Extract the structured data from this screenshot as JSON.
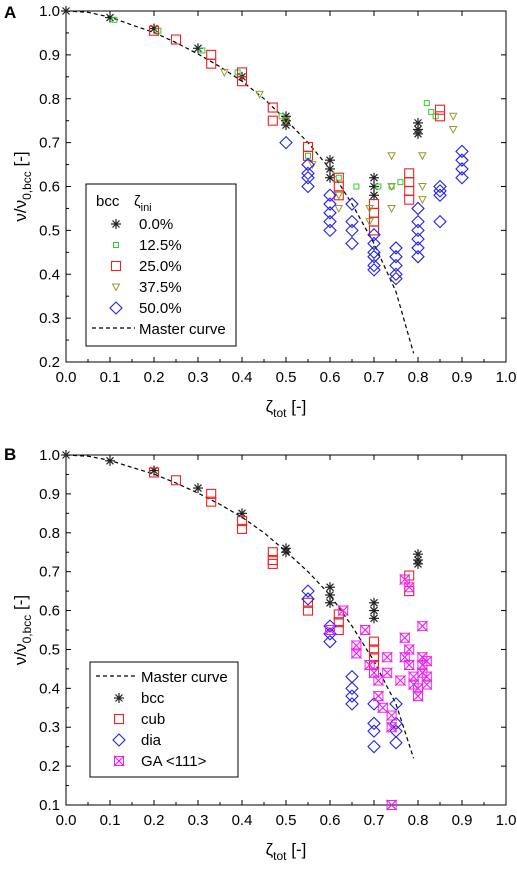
{
  "figure": {
    "panels": [
      "A",
      "B"
    ]
  },
  "colors": {
    "bcc": "#222222",
    "12.5%": "#33cc33",
    "25.0%": "#ee2222",
    "37.5%": "#999933",
    "50.0%": "#2222ee",
    "cub": "#ee2222",
    "dia": "#2222ee",
    "GA <111>": "#ee22ee",
    "master": "#000000"
  },
  "chart_data": [
    {
      "panel": "A",
      "type": "scatter",
      "xlabel": "ζtot [-]",
      "ylabel": "ν/ν0,bcc [-]",
      "xlim": [
        0.0,
        1.0
      ],
      "ylim": [
        0.2,
        1.0
      ],
      "xticks": [
        "0.0",
        "0.1",
        "0.2",
        "0.3",
        "0.4",
        "0.5",
        "0.6",
        "0.7",
        "0.8",
        "0.9",
        "1.0"
      ],
      "yticks": [
        "0.2",
        "0.3",
        "0.4",
        "0.5",
        "0.6",
        "0.7",
        "0.8",
        "0.9",
        "1.0"
      ],
      "legend": {
        "header_left": "bcc",
        "header_right": "ζini",
        "entries": [
          "0.0%",
          "12.5%",
          "25.0%",
          "37.5%",
          "50.0%",
          "Master curve"
        ]
      },
      "master_curve": {
        "name": "Master curve",
        "x": [
          0.0,
          0.05,
          0.1,
          0.15,
          0.2,
          0.25,
          0.3,
          0.35,
          0.4,
          0.45,
          0.5,
          0.55,
          0.6,
          0.65,
          0.7,
          0.75,
          0.79
        ],
        "y": [
          1.0,
          0.997,
          0.986,
          0.968,
          0.951,
          0.928,
          0.902,
          0.873,
          0.84,
          0.8,
          0.752,
          0.7,
          0.64,
          0.56,
          0.47,
          0.36,
          0.22
        ]
      },
      "series": [
        {
          "name": "0.0%",
          "marker": "asterisk",
          "x": [
            0.0,
            0.1,
            0.2,
            0.3,
            0.4,
            0.5,
            0.5,
            0.5,
            0.6,
            0.6,
            0.6,
            0.7,
            0.7,
            0.7,
            0.8,
            0.8,
            0.8
          ],
          "y": [
            1.0,
            0.985,
            0.96,
            0.915,
            0.85,
            0.76,
            0.75,
            0.74,
            0.66,
            0.64,
            0.62,
            0.62,
            0.6,
            0.58,
            0.745,
            0.73,
            0.72
          ]
        },
        {
          "name": "12.5%",
          "marker": "small-square",
          "x": [
            0.11,
            0.21,
            0.31,
            0.39,
            0.49,
            0.55,
            0.62,
            0.66,
            0.71,
            0.74,
            0.76,
            0.82,
            0.83,
            0.84
          ],
          "y": [
            0.98,
            0.955,
            0.91,
            0.86,
            0.76,
            0.67,
            0.62,
            0.6,
            0.6,
            0.6,
            0.61,
            0.79,
            0.77,
            0.76
          ],
          "visible_values": []
        },
        {
          "name": "25.0%",
          "marker": "square",
          "x": [
            0.2,
            0.25,
            0.33,
            0.33,
            0.4,
            0.4,
            0.47,
            0.47,
            0.55,
            0.55,
            0.62,
            0.62,
            0.62,
            0.7,
            0.7,
            0.7,
            0.7,
            0.78,
            0.78,
            0.78,
            0.78,
            0.85,
            0.85
          ],
          "y": [
            0.955,
            0.935,
            0.9,
            0.88,
            0.86,
            0.84,
            0.78,
            0.75,
            0.69,
            0.67,
            0.62,
            0.6,
            0.58,
            0.56,
            0.54,
            0.52,
            0.5,
            0.63,
            0.61,
            0.59,
            0.57,
            0.775,
            0.76
          ]
        },
        {
          "name": "37.5%",
          "marker": "triangle-down",
          "x": [
            0.36,
            0.44,
            0.5,
            0.56,
            0.62,
            0.62,
            0.69,
            0.69,
            0.74,
            0.74,
            0.74,
            0.81,
            0.81,
            0.81,
            0.88,
            0.88
          ],
          "y": [
            0.86,
            0.81,
            0.75,
            0.65,
            0.58,
            0.55,
            0.55,
            0.52,
            0.67,
            0.6,
            0.55,
            0.67,
            0.6,
            0.57,
            0.76,
            0.73
          ]
        },
        {
          "name": "50.0%",
          "marker": "diamond",
          "x": [
            0.5,
            0.55,
            0.55,
            0.55,
            0.55,
            0.6,
            0.6,
            0.6,
            0.6,
            0.6,
            0.65,
            0.65,
            0.65,
            0.65,
            0.7,
            0.7,
            0.7,
            0.7,
            0.7,
            0.7,
            0.75,
            0.75,
            0.75,
            0.75,
            0.75,
            0.8,
            0.8,
            0.8,
            0.8,
            0.8,
            0.8,
            0.85,
            0.85,
            0.85,
            0.85,
            0.9,
            0.9,
            0.9,
            0.9
          ],
          "y": [
            0.7,
            0.65,
            0.63,
            0.62,
            0.6,
            0.58,
            0.56,
            0.54,
            0.52,
            0.5,
            0.56,
            0.52,
            0.5,
            0.47,
            0.49,
            0.47,
            0.45,
            0.44,
            0.42,
            0.41,
            0.46,
            0.44,
            0.42,
            0.4,
            0.39,
            0.55,
            0.52,
            0.5,
            0.48,
            0.46,
            0.44,
            0.6,
            0.59,
            0.58,
            0.52,
            0.68,
            0.66,
            0.64,
            0.62
          ]
        }
      ]
    },
    {
      "panel": "B",
      "type": "scatter",
      "xlabel": "ζtot [-]",
      "ylabel": "ν/ν0,bcc [-]",
      "xlim": [
        0.0,
        1.0
      ],
      "ylim": [
        0.1,
        1.0
      ],
      "xticks": [
        "0.0",
        "0.1",
        "0.2",
        "0.3",
        "0.4",
        "0.5",
        "0.6",
        "0.7",
        "0.8",
        "0.9",
        "1.0"
      ],
      "yticks": [
        "0.1",
        "0.2",
        "0.3",
        "0.4",
        "0.5",
        "0.6",
        "0.7",
        "0.8",
        "0.9",
        "1.0"
      ],
      "legend": {
        "entries": [
          "Master curve",
          "bcc",
          "cub",
          "dia",
          "GA <111>"
        ]
      },
      "master_curve": {
        "name": "Master curve",
        "x": [
          0.0,
          0.05,
          0.1,
          0.15,
          0.2,
          0.25,
          0.3,
          0.35,
          0.4,
          0.45,
          0.5,
          0.55,
          0.6,
          0.65,
          0.7,
          0.75,
          0.79
        ],
        "y": [
          1.0,
          0.997,
          0.986,
          0.968,
          0.951,
          0.928,
          0.902,
          0.873,
          0.84,
          0.8,
          0.752,
          0.7,
          0.64,
          0.56,
          0.47,
          0.36,
          0.22
        ]
      },
      "series": [
        {
          "name": "bcc",
          "marker": "asterisk",
          "x": [
            0.0,
            0.1,
            0.2,
            0.3,
            0.4,
            0.5,
            0.5,
            0.6,
            0.6,
            0.6,
            0.7,
            0.7,
            0.7,
            0.8,
            0.8,
            0.8
          ],
          "y": [
            1.0,
            0.985,
            0.96,
            0.915,
            0.85,
            0.76,
            0.75,
            0.66,
            0.64,
            0.62,
            0.62,
            0.6,
            0.58,
            0.745,
            0.73,
            0.72
          ]
        },
        {
          "name": "cub",
          "marker": "square",
          "x": [
            0.2,
            0.25,
            0.33,
            0.33,
            0.4,
            0.4,
            0.47,
            0.47,
            0.47,
            0.55,
            0.55,
            0.62,
            0.62,
            0.62,
            0.7,
            0.7,
            0.7,
            0.7,
            0.78,
            0.78
          ],
          "y": [
            0.955,
            0.935,
            0.9,
            0.88,
            0.83,
            0.81,
            0.75,
            0.73,
            0.72,
            0.62,
            0.6,
            0.59,
            0.57,
            0.55,
            0.52,
            0.5,
            0.48,
            0.46,
            0.69,
            0.65
          ]
        },
        {
          "name": "dia",
          "marker": "diamond",
          "x": [
            0.55,
            0.55,
            0.6,
            0.6,
            0.6,
            0.65,
            0.65,
            0.65,
            0.65,
            0.7,
            0.7,
            0.7,
            0.7,
            0.75,
            0.75,
            0.75,
            0.75
          ],
          "y": [
            0.65,
            0.63,
            0.56,
            0.54,
            0.52,
            0.43,
            0.4,
            0.38,
            0.36,
            0.36,
            0.31,
            0.29,
            0.25,
            0.36,
            0.31,
            0.29,
            0.26
          ]
        },
        {
          "name": "GA <111>",
          "marker": "x-cross",
          "x": [
            0.6,
            0.63,
            0.66,
            0.66,
            0.68,
            0.69,
            0.7,
            0.71,
            0.71,
            0.72,
            0.73,
            0.73,
            0.74,
            0.74,
            0.74,
            0.76,
            0.77,
            0.77,
            0.77,
            0.78,
            0.78,
            0.78,
            0.79,
            0.79,
            0.8,
            0.8,
            0.81,
            0.81,
            0.81,
            0.81,
            0.82,
            0.82,
            0.82
          ],
          "y": [
            0.55,
            0.6,
            0.51,
            0.49,
            0.55,
            0.46,
            0.44,
            0.42,
            0.38,
            0.35,
            0.48,
            0.44,
            0.33,
            0.3,
            0.1,
            0.42,
            0.68,
            0.53,
            0.48,
            0.66,
            0.5,
            0.46,
            0.43,
            0.41,
            0.4,
            0.38,
            0.56,
            0.48,
            0.46,
            0.44,
            0.47,
            0.43,
            0.41
          ]
        }
      ]
    }
  ]
}
